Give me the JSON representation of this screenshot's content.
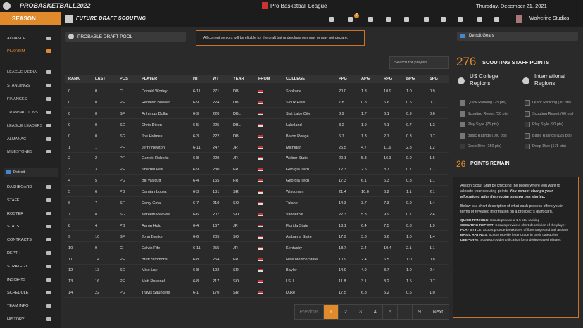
{
  "topbar": {
    "brand": "PROBASKETBALL2022",
    "league": "Pro Basketball League",
    "date": "Thursday, December 21, 2021",
    "badge": "7",
    "user": "Wolverine Studios"
  },
  "sidebar": {
    "section": "SEASON",
    "season_items": [
      {
        "label": "ADVANCE",
        "active": false
      },
      {
        "label": "PLAY/SIM",
        "active": true
      },
      {
        "label": "LEAGUE MEDIA",
        "active": false
      },
      {
        "label": "STANDINGS",
        "active": false
      },
      {
        "label": "FINANCES",
        "active": false
      },
      {
        "label": "TRANSACTIONS",
        "active": false
      },
      {
        "label": "LEAGUE LEADERS",
        "active": false
      },
      {
        "label": "ALMANAC",
        "active": false
      },
      {
        "label": "MILESTONES",
        "active": false
      }
    ],
    "team": "Detroit",
    "team_items": [
      "DASHBOARD",
      "STAFF",
      "ROSTER",
      "STATS",
      "CONTRACTS",
      "DEPTH",
      "STRATEGY",
      "INSIGHTS",
      "SCHEDULE",
      "TEAM INFO",
      "HISTORY"
    ]
  },
  "header": {
    "title": "FUTURE DRAFT SCOUTING"
  },
  "controls": {
    "pool": "PROBABLE DRAFT POOL",
    "notice": "All current seniors will be eligible for the draft but underclassmen may or may not declare.",
    "team": "Detroit Gears",
    "search": "Search for players..."
  },
  "table": {
    "columns": [
      "RANK",
      "LAST",
      "POS",
      "PLAYER",
      "HT",
      "WT",
      "YEAR",
      "FROM",
      "COLLEGE",
      "PPG",
      "APG",
      "RPG",
      "BPG",
      "SPG"
    ],
    "rows": [
      [
        "0",
        "0",
        "C",
        "Donald Worley",
        "6-11",
        "271",
        "DBL",
        "",
        "Spokane",
        "20.0",
        "1.3",
        "10.9",
        "1.0",
        "0.9"
      ],
      [
        "0",
        "0",
        "PF",
        "Renaldo Brewer",
        "6-9",
        "224",
        "DBL",
        "",
        "Sioux Falls",
        "7.8",
        "0.8",
        "6.6",
        "0.5",
        "0.7"
      ],
      [
        "0",
        "0",
        "SF",
        "Arthimus Dollar",
        "6-9",
        "220",
        "DBL",
        "",
        "Salt Lake City",
        "8.9",
        "1.7",
        "6.1",
        "0.9",
        "0.6"
      ],
      [
        "0",
        "0",
        "SG",
        "Chris Dixon",
        "6-5",
        "225",
        "DBL",
        "",
        "Lakeland",
        "8.2",
        "1.9",
        "4.1",
        "0.7",
        "1.3"
      ],
      [
        "0",
        "0",
        "SG",
        "Joe Holmes",
        "6-3",
        "222",
        "DBL",
        "",
        "Baton Rouge",
        "6.7",
        "1.3",
        "2.7",
        "0.3",
        "0.7"
      ],
      [
        "1",
        "1",
        "PF",
        "Jerry Newton",
        "6-11",
        "247",
        "JR",
        "",
        "Michigan",
        "25.5",
        "4.7",
        "11.6",
        "2.3",
        "1.2"
      ],
      [
        "2",
        "2",
        "PF",
        "Garrett Roberts",
        "6-8",
        "229",
        "JR",
        "",
        "Weber State",
        "20.1",
        "5.3",
        "16.3",
        "0.9",
        "1.6"
      ],
      [
        "3",
        "3",
        "PF",
        "Sherrell Hall",
        "6-9",
        "230",
        "FR",
        "",
        "Georgia Tech",
        "12.3",
        "2.5",
        "8.7",
        "0.7",
        "1.7"
      ],
      [
        "4",
        "5",
        "PG",
        "Bill Walcutt",
        "6-4",
        "155",
        "FR",
        "",
        "Georgia Tech",
        "17.3",
        "6.1",
        "6.3",
        "0.8",
        "1.1"
      ],
      [
        "5",
        "6",
        "PG",
        "Damian Lopez",
        "6-3",
        "181",
        "SR",
        "",
        "Wisconsin",
        "21.4",
        "10.6",
        "6.2",
        "1.1",
        "2.1"
      ],
      [
        "6",
        "7",
        "SF",
        "Corry Cota",
        "6-7",
        "210",
        "SO",
        "",
        "Tulane",
        "14.3",
        "3.7",
        "7.3",
        "0.9",
        "1.4"
      ],
      [
        "7",
        "8",
        "SG",
        "Kareem Reeves",
        "6-6",
        "207",
        "SO",
        "",
        "Vanderbilt",
        "22.3",
        "5.3",
        "9.9",
        "0.7",
        "2.4"
      ],
      [
        "8",
        "4",
        "PG",
        "Aaron Huld",
        "6-4",
        "167",
        "JR",
        "",
        "Florida State",
        "18.1",
        "6.4",
        "7.5",
        "0.8",
        "1.9"
      ],
      [
        "9",
        "10",
        "SF",
        "John Benton",
        "6-6",
        "205",
        "SO",
        "",
        "Alabama State",
        "17.9",
        "3.3",
        "6.6",
        "1.0",
        "1.4"
      ],
      [
        "10",
        "9",
        "C",
        "Calvin Fife",
        "6-11",
        "255",
        "JR",
        "",
        "Kentucky",
        "18.7",
        "2.4",
        "10.4",
        "2.1",
        "1.1"
      ],
      [
        "11",
        "14",
        "PF",
        "Brett Simmons",
        "6-8",
        "254",
        "FR",
        "",
        "New Mexico State",
        "10.9",
        "2.4",
        "6.5",
        "1.0",
        "0.8"
      ],
      [
        "12",
        "13",
        "SG",
        "Mike Lay",
        "6-8",
        "192",
        "SR",
        "",
        "Baylor",
        "14.9",
        "4.9",
        "8.7",
        "1.0",
        "2.4"
      ],
      [
        "13",
        "16",
        "PF",
        "Matt Ravenel",
        "6-8",
        "217",
        "SO",
        "",
        "LSU",
        "11.8",
        "3.1",
        "8.2",
        "1.5",
        "0.7"
      ],
      [
        "14",
        "22",
        "PG",
        "Travis Saunders",
        "6-1",
        "170",
        "SR",
        "",
        "Duke",
        "17.5",
        "6.8",
        "5.2",
        "0.6",
        "1.0"
      ]
    ]
  },
  "scouting": {
    "points": 276,
    "points_label": "SCOUTING STAFF POINTS",
    "remain": 26,
    "remain_label": "POINTS REMAIN",
    "us": {
      "title": "US College Regions",
      "items": [
        {
          "label": "Quick Ranking (25 pts)",
          "checked": true
        },
        {
          "label": "Scouting Report (50 pts)",
          "checked": true
        },
        {
          "label": "Play Style (75 pts)",
          "checked": true
        },
        {
          "label": "Basic Ratings (100 pts)",
          "checked": true
        },
        {
          "label": "Deep Dive (150 pts)",
          "checked": false
        }
      ]
    },
    "intl": {
      "title": "International Regions",
      "items": [
        {
          "label": "Quick Ranking (30 pts)",
          "checked": false
        },
        {
          "label": "Scouting Report (60 pts)",
          "checked": false
        },
        {
          "label": "Play Style (90 pts)",
          "checked": false
        },
        {
          "label": "Basic Ratings (125 pts)",
          "checked": false
        },
        {
          "label": "Deep Dive (175 pts)",
          "checked": false
        }
      ]
    }
  },
  "info": {
    "intro": "Assign Scout Staff by checking the boxes where you want to allocate your scouting points.",
    "warning": "You cannot change your allocations after the regular season has started.",
    "description": "Below is a short description of what each process offers you in terms of revealed information on a prospect's draft card.",
    "terms": [
      {
        "term": "QUICK RANKING",
        "text": ": Scouts provide a 1-5 star ranking"
      },
      {
        "term": "SCOUTING REPORT",
        "text": ": Scouts provide a short description of the player"
      },
      {
        "term": "PLAY STYLE",
        "text": ": Scouts provide breakdown of floor range and ball actions"
      },
      {
        "term": "BASIC RATINGS",
        "text": ": Scouts provide letter grade in basic categories"
      },
      {
        "term": "DEEP DIVE",
        "text": ": Scouts provide notification for underleveraged players"
      }
    ]
  },
  "pagination": [
    {
      "label": "Previous",
      "active": false
    },
    {
      "label": "1",
      "active": true
    },
    {
      "label": "2",
      "active": false
    },
    {
      "label": "3",
      "active": false
    },
    {
      "label": "4",
      "active": false
    },
    {
      "label": "5",
      "active": false
    },
    {
      "label": "...",
      "active": false
    },
    {
      "label": "9",
      "active": false
    },
    {
      "label": "Next",
      "active": false
    }
  ]
}
